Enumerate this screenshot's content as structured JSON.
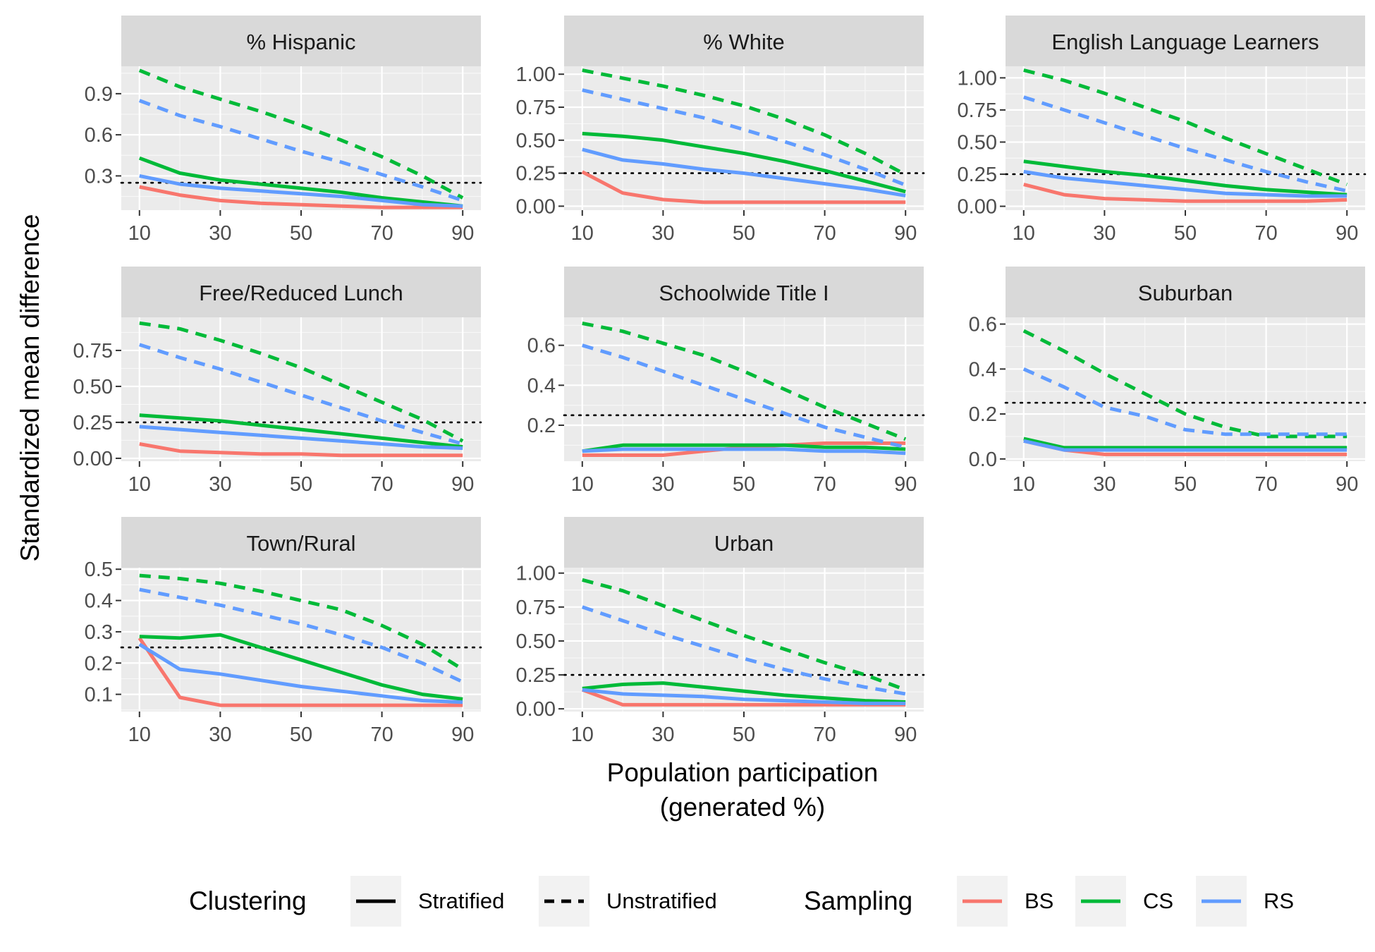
{
  "figure": {
    "ylabel": "Standardized mean difference",
    "xlabel_line1": "Population participation",
    "xlabel_line2": "(generated %)",
    "reference_line": 0.25,
    "legend": {
      "clustering_title": "Clustering",
      "clustering_items": [
        {
          "label": "Stratified",
          "linetype": "solid"
        },
        {
          "label": "Unstratified",
          "linetype": "dashed"
        }
      ],
      "sampling_title": "Sampling",
      "sampling_items": [
        {
          "label": "BS",
          "color": "#F8766D"
        },
        {
          "label": "CS",
          "color": "#00BA38"
        },
        {
          "label": "RS",
          "color": "#619CFF"
        }
      ]
    }
  },
  "chart_data": [
    {
      "type": "line",
      "title": "% Hispanic",
      "x": [
        10,
        20,
        30,
        40,
        50,
        60,
        70,
        80,
        90
      ],
      "ylim": [
        0.05,
        1.1
      ],
      "yticks": [
        0.3,
        0.6,
        0.9
      ],
      "ytick_labels": [
        "0.3",
        "0.6",
        "0.9"
      ],
      "xticks": [
        10,
        30,
        50,
        70,
        90
      ],
      "xtick_labels": [
        "10",
        "30",
        "50",
        "70",
        "90"
      ],
      "series": [
        {
          "sampling": "BS",
          "clustering": "Stratified",
          "values": [
            0.22,
            0.16,
            0.12,
            0.1,
            0.09,
            0.08,
            0.07,
            0.07,
            0.07
          ]
        },
        {
          "sampling": "CS",
          "clustering": "Stratified",
          "values": [
            0.43,
            0.32,
            0.27,
            0.24,
            0.21,
            0.18,
            0.14,
            0.11,
            0.08
          ]
        },
        {
          "sampling": "RS",
          "clustering": "Stratified",
          "values": [
            0.3,
            0.24,
            0.21,
            0.19,
            0.17,
            0.15,
            0.12,
            0.09,
            0.08
          ]
        },
        {
          "sampling": "CS",
          "clustering": "Unstratified",
          "values": [
            1.07,
            0.95,
            0.86,
            0.77,
            0.67,
            0.56,
            0.44,
            0.3,
            0.14
          ]
        },
        {
          "sampling": "RS",
          "clustering": "Unstratified",
          "values": [
            0.85,
            0.74,
            0.66,
            0.57,
            0.48,
            0.4,
            0.31,
            0.22,
            0.12
          ]
        }
      ]
    },
    {
      "type": "line",
      "title": "% White",
      "x": [
        10,
        20,
        30,
        40,
        50,
        60,
        70,
        80,
        90
      ],
      "ylim": [
        -0.03,
        1.06
      ],
      "yticks": [
        0,
        0.25,
        0.5,
        0.75,
        1
      ],
      "ytick_labels": [
        "0.00",
        "0.25",
        "0.50",
        "0.75",
        "1.00"
      ],
      "xticks": [
        10,
        30,
        50,
        70,
        90
      ],
      "xtick_labels": [
        "10",
        "30",
        "50",
        "70",
        "90"
      ],
      "series": [
        {
          "sampling": "BS",
          "clustering": "Stratified",
          "values": [
            0.26,
            0.1,
            0.05,
            0.03,
            0.03,
            0.03,
            0.03,
            0.03,
            0.03
          ]
        },
        {
          "sampling": "CS",
          "clustering": "Stratified",
          "values": [
            0.55,
            0.53,
            0.5,
            0.45,
            0.4,
            0.34,
            0.27,
            0.19,
            0.11
          ]
        },
        {
          "sampling": "RS",
          "clustering": "Stratified",
          "values": [
            0.43,
            0.35,
            0.32,
            0.28,
            0.25,
            0.21,
            0.17,
            0.13,
            0.08
          ]
        },
        {
          "sampling": "CS",
          "clustering": "Unstratified",
          "values": [
            1.03,
            0.97,
            0.91,
            0.84,
            0.76,
            0.66,
            0.54,
            0.4,
            0.24
          ]
        },
        {
          "sampling": "RS",
          "clustering": "Unstratified",
          "values": [
            0.88,
            0.81,
            0.74,
            0.67,
            0.58,
            0.49,
            0.39,
            0.28,
            0.16
          ]
        }
      ]
    },
    {
      "type": "line",
      "title": "English Language Learners",
      "x": [
        10,
        20,
        30,
        40,
        50,
        60,
        70,
        80,
        90
      ],
      "ylim": [
        -0.03,
        1.09
      ],
      "yticks": [
        0,
        0.25,
        0.5,
        0.75,
        1
      ],
      "ytick_labels": [
        "0.00",
        "0.25",
        "0.50",
        "0.75",
        "1.00"
      ],
      "xticks": [
        10,
        30,
        50,
        70,
        90
      ],
      "xtick_labels": [
        "10",
        "30",
        "50",
        "70",
        "90"
      ],
      "series": [
        {
          "sampling": "BS",
          "clustering": "Stratified",
          "values": [
            0.17,
            0.09,
            0.06,
            0.05,
            0.04,
            0.04,
            0.04,
            0.04,
            0.05
          ]
        },
        {
          "sampling": "CS",
          "clustering": "Stratified",
          "values": [
            0.35,
            0.31,
            0.27,
            0.24,
            0.2,
            0.16,
            0.13,
            0.11,
            0.09
          ]
        },
        {
          "sampling": "RS",
          "clustering": "Stratified",
          "values": [
            0.27,
            0.22,
            0.19,
            0.16,
            0.13,
            0.1,
            0.09,
            0.08,
            0.08
          ]
        },
        {
          "sampling": "CS",
          "clustering": "Unstratified",
          "values": [
            1.06,
            0.98,
            0.88,
            0.77,
            0.66,
            0.53,
            0.41,
            0.29,
            0.17
          ]
        },
        {
          "sampling": "RS",
          "clustering": "Unstratified",
          "values": [
            0.85,
            0.75,
            0.65,
            0.55,
            0.45,
            0.36,
            0.27,
            0.19,
            0.12
          ]
        }
      ]
    },
    {
      "type": "line",
      "title": "Free/Reduced Lunch",
      "x": [
        10,
        20,
        30,
        40,
        50,
        60,
        70,
        80,
        90
      ],
      "ylim": [
        -0.02,
        0.98
      ],
      "yticks": [
        0,
        0.25,
        0.5,
        0.75
      ],
      "ytick_labels": [
        "0.00",
        "0.25",
        "0.50",
        "0.75"
      ],
      "xticks": [
        10,
        30,
        50,
        70,
        90
      ],
      "xtick_labels": [
        "10",
        "30",
        "50",
        "70",
        "90"
      ],
      "series": [
        {
          "sampling": "BS",
          "clustering": "Stratified",
          "values": [
            0.1,
            0.05,
            0.04,
            0.03,
            0.03,
            0.02,
            0.02,
            0.02,
            0.02
          ]
        },
        {
          "sampling": "CS",
          "clustering": "Stratified",
          "values": [
            0.3,
            0.28,
            0.26,
            0.23,
            0.2,
            0.17,
            0.14,
            0.11,
            0.08
          ]
        },
        {
          "sampling": "RS",
          "clustering": "Stratified",
          "values": [
            0.22,
            0.2,
            0.18,
            0.16,
            0.14,
            0.12,
            0.1,
            0.08,
            0.07
          ]
        },
        {
          "sampling": "CS",
          "clustering": "Unstratified",
          "values": [
            0.94,
            0.9,
            0.82,
            0.73,
            0.63,
            0.51,
            0.39,
            0.27,
            0.12
          ]
        },
        {
          "sampling": "RS",
          "clustering": "Unstratified",
          "values": [
            0.79,
            0.7,
            0.62,
            0.53,
            0.44,
            0.35,
            0.26,
            0.18,
            0.1
          ]
        }
      ]
    },
    {
      "type": "line",
      "title": "Schoolwide Title I",
      "x": [
        10,
        20,
        30,
        40,
        50,
        60,
        70,
        80,
        90
      ],
      "ylim": [
        0.02,
        0.74
      ],
      "yticks": [
        0.2,
        0.4,
        0.6
      ],
      "ytick_labels": [
        "0.2",
        "0.4",
        "0.6"
      ],
      "xticks": [
        10,
        30,
        50,
        70,
        90
      ],
      "xtick_labels": [
        "10",
        "30",
        "50",
        "70",
        "90"
      ],
      "series": [
        {
          "sampling": "BS",
          "clustering": "Stratified",
          "values": [
            0.05,
            0.05,
            0.05,
            0.07,
            0.09,
            0.1,
            0.11,
            0.11,
            0.11
          ]
        },
        {
          "sampling": "CS",
          "clustering": "Stratified",
          "values": [
            0.07,
            0.1,
            0.1,
            0.1,
            0.1,
            0.1,
            0.09,
            0.09,
            0.08
          ]
        },
        {
          "sampling": "RS",
          "clustering": "Stratified",
          "values": [
            0.07,
            0.08,
            0.08,
            0.08,
            0.08,
            0.08,
            0.07,
            0.07,
            0.06
          ]
        },
        {
          "sampling": "CS",
          "clustering": "Unstratified",
          "values": [
            0.71,
            0.67,
            0.61,
            0.55,
            0.47,
            0.38,
            0.29,
            0.21,
            0.13
          ]
        },
        {
          "sampling": "RS",
          "clustering": "Unstratified",
          "values": [
            0.6,
            0.54,
            0.47,
            0.4,
            0.33,
            0.26,
            0.19,
            0.14,
            0.09
          ]
        }
      ]
    },
    {
      "type": "line",
      "title": "Suburban",
      "x": [
        10,
        20,
        30,
        40,
        50,
        60,
        70,
        80,
        90
      ],
      "ylim": [
        -0.01,
        0.63
      ],
      "yticks": [
        0,
        0.2,
        0.4,
        0.6
      ],
      "ytick_labels": [
        "0.0",
        "0.2",
        "0.4",
        "0.6"
      ],
      "xticks": [
        10,
        30,
        50,
        70,
        90
      ],
      "xtick_labels": [
        "10",
        "30",
        "50",
        "70",
        "90"
      ],
      "series": [
        {
          "sampling": "BS",
          "clustering": "Stratified",
          "values": [
            0.08,
            0.04,
            0.02,
            0.02,
            0.02,
            0.02,
            0.02,
            0.02,
            0.02
          ]
        },
        {
          "sampling": "CS",
          "clustering": "Stratified",
          "values": [
            0.09,
            0.05,
            0.05,
            0.05,
            0.05,
            0.05,
            0.05,
            0.05,
            0.05
          ]
        },
        {
          "sampling": "RS",
          "clustering": "Stratified",
          "values": [
            0.08,
            0.04,
            0.04,
            0.04,
            0.04,
            0.04,
            0.04,
            0.04,
            0.04
          ]
        },
        {
          "sampling": "CS",
          "clustering": "Unstratified",
          "values": [
            0.57,
            0.48,
            0.38,
            0.29,
            0.2,
            0.14,
            0.1,
            0.1,
            0.1
          ]
        },
        {
          "sampling": "RS",
          "clustering": "Unstratified",
          "values": [
            0.4,
            0.32,
            0.23,
            0.19,
            0.13,
            0.11,
            0.11,
            0.11,
            0.11
          ]
        }
      ]
    },
    {
      "type": "line",
      "title": "Town/Rural",
      "x": [
        10,
        20,
        30,
        40,
        50,
        60,
        70,
        80,
        90
      ],
      "ylim": [
        0.045,
        0.505
      ],
      "yticks": [
        0.1,
        0.2,
        0.3,
        0.4,
        0.5
      ],
      "ytick_labels": [
        "0.1",
        "0.2",
        "0.3",
        "0.4",
        "0.5"
      ],
      "xticks": [
        10,
        30,
        50,
        70,
        90
      ],
      "xtick_labels": [
        "10",
        "30",
        "50",
        "70",
        "90"
      ],
      "series": [
        {
          "sampling": "BS",
          "clustering": "Stratified",
          "values": [
            0.28,
            0.09,
            0.065,
            0.065,
            0.065,
            0.065,
            0.065,
            0.065,
            0.065
          ]
        },
        {
          "sampling": "CS",
          "clustering": "Stratified",
          "values": [
            0.285,
            0.28,
            0.29,
            0.25,
            0.21,
            0.17,
            0.13,
            0.1,
            0.085
          ]
        },
        {
          "sampling": "RS",
          "clustering": "Stratified",
          "values": [
            0.26,
            0.18,
            0.165,
            0.145,
            0.125,
            0.11,
            0.095,
            0.08,
            0.075
          ]
        },
        {
          "sampling": "CS",
          "clustering": "Unstratified",
          "values": [
            0.48,
            0.47,
            0.455,
            0.43,
            0.4,
            0.37,
            0.32,
            0.26,
            0.18
          ]
        },
        {
          "sampling": "RS",
          "clustering": "Unstratified",
          "values": [
            0.435,
            0.41,
            0.385,
            0.355,
            0.325,
            0.29,
            0.25,
            0.2,
            0.14
          ]
        }
      ]
    },
    {
      "type": "line",
      "title": "Urban",
      "x": [
        10,
        20,
        30,
        40,
        50,
        60,
        70,
        80,
        90
      ],
      "ylim": [
        -0.02,
        1.04
      ],
      "yticks": [
        0,
        0.25,
        0.5,
        0.75,
        1
      ],
      "ytick_labels": [
        "0.00",
        "0.25",
        "0.50",
        "0.75",
        "1.00"
      ],
      "xticks": [
        10,
        30,
        50,
        70,
        90
      ],
      "xtick_labels": [
        "10",
        "30",
        "50",
        "70",
        "90"
      ],
      "series": [
        {
          "sampling": "BS",
          "clustering": "Stratified",
          "values": [
            0.14,
            0.03,
            0.03,
            0.03,
            0.03,
            0.03,
            0.03,
            0.03,
            0.03
          ]
        },
        {
          "sampling": "CS",
          "clustering": "Stratified",
          "values": [
            0.15,
            0.18,
            0.19,
            0.16,
            0.13,
            0.1,
            0.08,
            0.06,
            0.05
          ]
        },
        {
          "sampling": "RS",
          "clustering": "Stratified",
          "values": [
            0.14,
            0.11,
            0.1,
            0.09,
            0.07,
            0.06,
            0.05,
            0.04,
            0.04
          ]
        },
        {
          "sampling": "CS",
          "clustering": "Unstratified",
          "values": [
            0.95,
            0.87,
            0.76,
            0.65,
            0.54,
            0.44,
            0.34,
            0.25,
            0.14
          ]
        },
        {
          "sampling": "RS",
          "clustering": "Unstratified",
          "values": [
            0.75,
            0.65,
            0.55,
            0.46,
            0.37,
            0.29,
            0.22,
            0.16,
            0.11
          ]
        }
      ]
    }
  ]
}
